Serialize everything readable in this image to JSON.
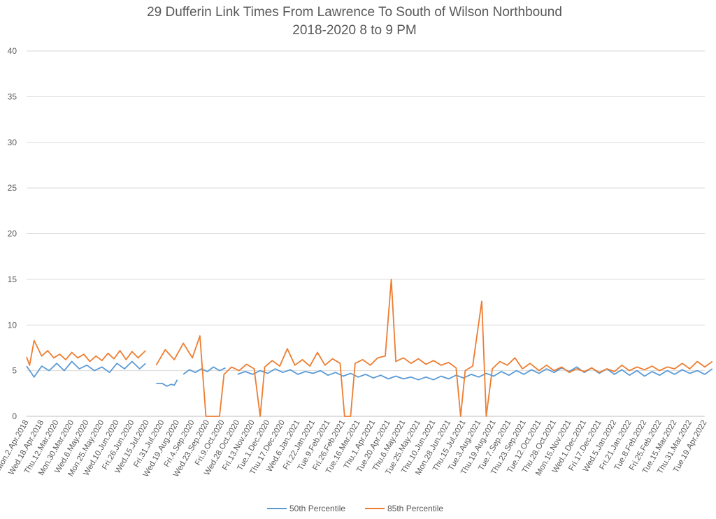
{
  "chart_data": {
    "type": "line",
    "title": "29 Dufferin Link Times From Lawrence To South of Wilson Northbound",
    "subtitle": "2018-2020 8 to 9 PM",
    "ylim": [
      0,
      40
    ],
    "yticks": [
      "0",
      "5",
      "10",
      "15",
      "20",
      "25",
      "30",
      "35",
      "40"
    ],
    "grid": true,
    "legend_position": "bottom",
    "x_tick_labels": [
      "Mon.2.Apr.2018",
      "Wed.18.Apr.2018",
      "Thu.12.Mar.2020",
      "Mon.30.Mar.2020",
      "Wed.6.May.2020",
      "Mon.25.May.2020",
      "Wed.10.Jun.2020",
      "Fri.26.Jun.2020",
      "Wed.15.Jul.2020",
      "Fri.31.Jul.2020",
      "Wed.19.Aug.2020",
      "Fri.4.Sep.2020",
      "Wed.23.Sep.2020",
      "Fri.9.Oct.2020",
      "Wed.28.Oct.2020",
      "Fri.13.Nov.2020",
      "Tue.1.Dec.2020",
      "Thu.17.Dec.2020",
      "Wed.6.Jan.2021",
      "Fri.22.Jan.2021",
      "Tue.9.Feb.2021",
      "Fri.26.Feb.2021",
      "Tue.16.Mar.2021",
      "Thu.1.Apr.2021",
      "Tue.20.Apr.2021",
      "Thu.6.May.2021",
      "Tue.25.May.2021",
      "Thu.10.Jun.2021",
      "Mon.28.Jun.2021",
      "Thu.15.Jul.2021",
      "Tue.3.Aug.2021",
      "Thu.19.Aug.2021",
      "Tue.7.Sep.2021",
      "Thu.23.Sep.2021",
      "Tue.12.Oct.2021",
      "Thu.28.Oct.2021",
      "Mon.15.Nov.2021",
      "Wed.1.Dec.2021",
      "Fri.17.Dec.2021",
      "Wed.5.Jan.2022",
      "Fri.21.Jan.2022",
      "Tue.8.Feb.2022",
      "Fri.25.Feb.2022",
      "Tue.15.Mar.2022",
      "Thu.31.Mar.2022",
      "Tue.19.Apr.2022"
    ],
    "series": [
      {
        "name": "50th Percentile",
        "color": "#5b9bd5",
        "values": [
          [
            0.0,
            5.5
          ],
          [
            0.5,
            4.3
          ],
          [
            1.0,
            5.5
          ],
          [
            1.5,
            5.0
          ],
          [
            2.0,
            5.8
          ],
          [
            2.5,
            5.0
          ],
          [
            3.0,
            6.0
          ],
          [
            3.5,
            5.2
          ],
          [
            4.0,
            5.6
          ],
          [
            4.5,
            5.0
          ],
          [
            5.0,
            5.4
          ],
          [
            5.5,
            4.8
          ],
          [
            6.0,
            5.8
          ],
          [
            6.5,
            5.2
          ],
          [
            7.0,
            6.0
          ],
          [
            7.5,
            5.2
          ],
          [
            7.9,
            5.8
          ],
          [
            null,
            null
          ],
          [
            8.6,
            3.6
          ],
          [
            9.0,
            3.6
          ],
          [
            9.3,
            3.3
          ],
          [
            9.6,
            3.5
          ],
          [
            9.8,
            3.4
          ],
          [
            10.0,
            4.0
          ],
          [
            null,
            null
          ],
          [
            10.4,
            4.6
          ],
          [
            10.8,
            5.1
          ],
          [
            11.2,
            4.8
          ],
          [
            11.6,
            5.2
          ],
          [
            12.0,
            4.9
          ],
          [
            12.4,
            5.4
          ],
          [
            12.8,
            5.0
          ],
          [
            13.2,
            5.3
          ],
          [
            null,
            null
          ],
          [
            14.0,
            4.6
          ],
          [
            14.5,
            4.9
          ],
          [
            15.0,
            4.6
          ],
          [
            15.5,
            5.0
          ],
          [
            16.0,
            4.7
          ],
          [
            16.5,
            5.2
          ],
          [
            17.0,
            4.8
          ],
          [
            17.5,
            5.1
          ],
          [
            18.0,
            4.6
          ],
          [
            18.5,
            4.9
          ],
          [
            19.0,
            4.7
          ],
          [
            19.5,
            5.0
          ],
          [
            20.0,
            4.5
          ],
          [
            20.5,
            4.8
          ],
          [
            21.0,
            4.4
          ],
          [
            21.5,
            4.7
          ],
          [
            22.0,
            4.3
          ],
          [
            22.5,
            4.6
          ],
          [
            23.0,
            4.2
          ],
          [
            23.5,
            4.5
          ],
          [
            24.0,
            4.1
          ],
          [
            24.5,
            4.4
          ],
          [
            25.0,
            4.1
          ],
          [
            25.5,
            4.3
          ],
          [
            26.0,
            4.0
          ],
          [
            26.5,
            4.3
          ],
          [
            27.0,
            4.0
          ],
          [
            27.5,
            4.4
          ],
          [
            28.0,
            4.1
          ],
          [
            28.5,
            4.5
          ],
          [
            29.0,
            4.2
          ],
          [
            29.5,
            4.6
          ],
          [
            30.0,
            4.3
          ],
          [
            30.5,
            4.7
          ],
          [
            31.0,
            4.4
          ],
          [
            31.5,
            4.9
          ],
          [
            32.0,
            4.5
          ],
          [
            32.5,
            5.0
          ],
          [
            33.0,
            4.6
          ],
          [
            33.5,
            5.1
          ],
          [
            34.0,
            4.7
          ],
          [
            34.5,
            5.2
          ],
          [
            35.0,
            4.8
          ],
          [
            35.5,
            5.3
          ],
          [
            36.0,
            4.9
          ],
          [
            36.5,
            5.4
          ],
          [
            37.0,
            4.8
          ],
          [
            37.5,
            5.3
          ],
          [
            38.0,
            4.7
          ],
          [
            38.5,
            5.2
          ],
          [
            39.0,
            4.6
          ],
          [
            39.5,
            5.1
          ],
          [
            40.0,
            4.5
          ],
          [
            40.5,
            5.0
          ],
          [
            41.0,
            4.4
          ],
          [
            41.5,
            4.9
          ],
          [
            42.0,
            4.5
          ],
          [
            42.5,
            5.0
          ],
          [
            43.0,
            4.6
          ],
          [
            43.5,
            5.1
          ],
          [
            44.0,
            4.7
          ],
          [
            44.5,
            5.0
          ],
          [
            45.0,
            4.6
          ],
          [
            45.5,
            5.2
          ]
        ]
      },
      {
        "name": "85th Percentile",
        "color": "#ed7d31",
        "values": [
          [
            0.0,
            6.5
          ],
          [
            0.2,
            5.6
          ],
          [
            0.5,
            8.3
          ],
          [
            1.0,
            6.6
          ],
          [
            1.4,
            7.2
          ],
          [
            1.8,
            6.4
          ],
          [
            2.2,
            6.8
          ],
          [
            2.6,
            6.2
          ],
          [
            3.0,
            7.0
          ],
          [
            3.4,
            6.4
          ],
          [
            3.8,
            6.8
          ],
          [
            4.2,
            6.0
          ],
          [
            4.6,
            6.6
          ],
          [
            5.0,
            6.1
          ],
          [
            5.4,
            6.9
          ],
          [
            5.8,
            6.3
          ],
          [
            6.2,
            7.2
          ],
          [
            6.6,
            6.2
          ],
          [
            7.0,
            7.1
          ],
          [
            7.4,
            6.4
          ],
          [
            7.9,
            7.2
          ],
          [
            null,
            null
          ],
          [
            8.6,
            5.6
          ],
          [
            9.2,
            7.3
          ],
          [
            9.8,
            6.2
          ],
          [
            10.4,
            8.0
          ],
          [
            11.0,
            6.4
          ],
          [
            11.5,
            8.8
          ],
          [
            11.9,
            0.0
          ],
          [
            12.8,
            0.0
          ],
          [
            13.1,
            4.6
          ],
          [
            13.6,
            5.4
          ],
          [
            14.1,
            5.0
          ],
          [
            14.6,
            5.7
          ],
          [
            15.1,
            5.2
          ],
          [
            15.5,
            0.0
          ],
          [
            15.8,
            5.4
          ],
          [
            16.3,
            6.1
          ],
          [
            16.8,
            5.5
          ],
          [
            17.3,
            7.4
          ],
          [
            17.8,
            5.6
          ],
          [
            18.3,
            6.2
          ],
          [
            18.8,
            5.5
          ],
          [
            19.3,
            7.0
          ],
          [
            19.8,
            5.6
          ],
          [
            20.3,
            6.3
          ],
          [
            20.8,
            5.8
          ],
          [
            21.1,
            0.0
          ],
          [
            21.5,
            0.0
          ],
          [
            21.8,
            5.8
          ],
          [
            22.3,
            6.2
          ],
          [
            22.8,
            5.6
          ],
          [
            23.3,
            6.4
          ],
          [
            23.8,
            6.6
          ],
          [
            24.2,
            15.0
          ],
          [
            24.5,
            6.0
          ],
          [
            25.0,
            6.4
          ],
          [
            25.5,
            5.8
          ],
          [
            26.0,
            6.3
          ],
          [
            26.5,
            5.7
          ],
          [
            27.0,
            6.1
          ],
          [
            27.5,
            5.6
          ],
          [
            28.0,
            5.9
          ],
          [
            28.5,
            5.3
          ],
          [
            28.8,
            0.0
          ],
          [
            29.1,
            5.0
          ],
          [
            29.6,
            5.5
          ],
          [
            30.2,
            12.6
          ],
          [
            30.5,
            0.0
          ],
          [
            30.9,
            5.2
          ],
          [
            31.4,
            6.0
          ],
          [
            31.9,
            5.6
          ],
          [
            32.4,
            6.4
          ],
          [
            32.9,
            5.2
          ],
          [
            33.4,
            5.8
          ],
          [
            34.0,
            5.0
          ],
          [
            34.5,
            5.6
          ],
          [
            35.0,
            5.0
          ],
          [
            35.5,
            5.4
          ],
          [
            36.0,
            4.8
          ],
          [
            36.5,
            5.2
          ],
          [
            37.0,
            4.9
          ],
          [
            37.5,
            5.3
          ],
          [
            38.0,
            4.8
          ],
          [
            38.5,
            5.2
          ],
          [
            39.0,
            4.9
          ],
          [
            39.5,
            5.6
          ],
          [
            40.0,
            5.0
          ],
          [
            40.5,
            5.4
          ],
          [
            41.0,
            5.1
          ],
          [
            41.5,
            5.5
          ],
          [
            42.0,
            5.0
          ],
          [
            42.5,
            5.4
          ],
          [
            43.0,
            5.2
          ],
          [
            43.5,
            5.8
          ],
          [
            44.0,
            5.2
          ],
          [
            44.5,
            6.0
          ],
          [
            45.0,
            5.4
          ],
          [
            45.5,
            6.0
          ]
        ]
      }
    ]
  }
}
